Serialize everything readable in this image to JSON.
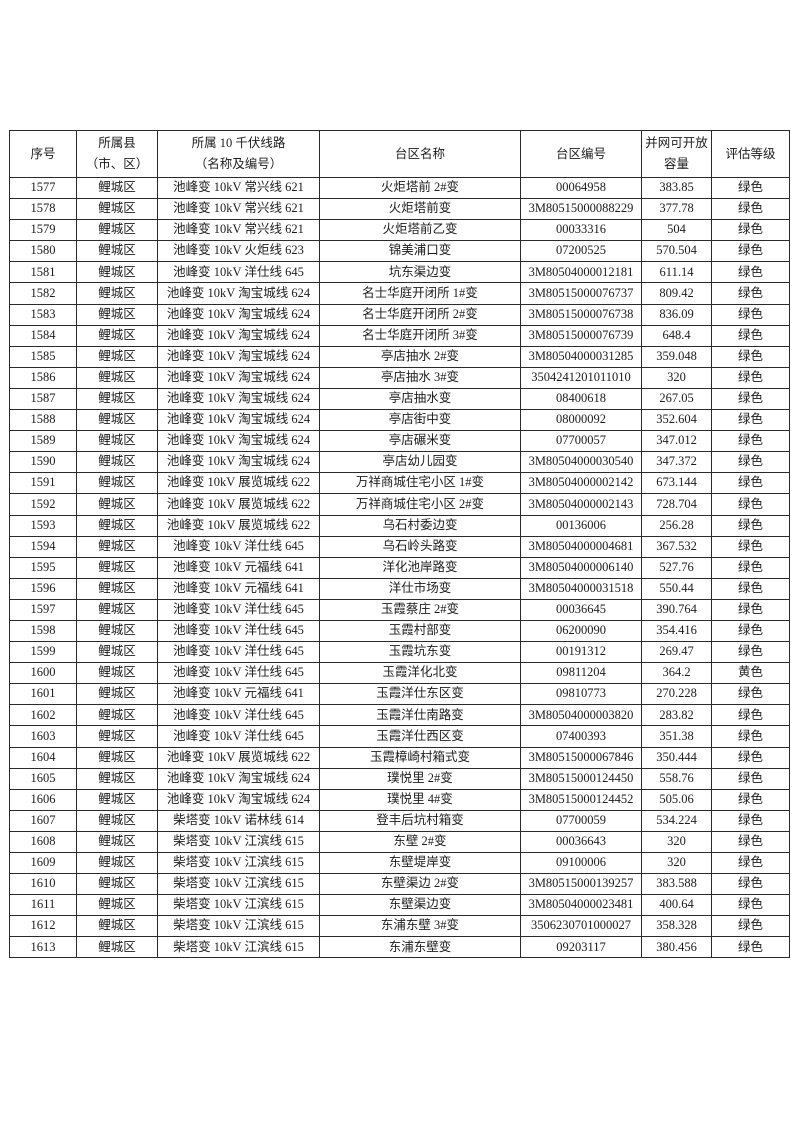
{
  "page": {
    "background": "#ffffff",
    "text_color": "#1c1c1c",
    "border_color": "#2a2a2a"
  },
  "table": {
    "headers": [
      "序号",
      "所属县\n（市、区）",
      "所属 10 千伏线路\n（名称及编号）",
      "台区名称",
      "台区编号",
      "并网可开放\n容量",
      "评估等级"
    ],
    "column_keys": [
      "no",
      "county",
      "line",
      "station_name",
      "station_code",
      "capacity",
      "grade"
    ],
    "rows": [
      {
        "no": "1577",
        "county": "鲤城区",
        "line": "池峰变 10kV 常兴线 621",
        "station_name": "火炬塔前 2#变",
        "station_code": "00064958",
        "capacity": "383.85",
        "grade": "绿色"
      },
      {
        "no": "1578",
        "county": "鲤城区",
        "line": "池峰变 10kV 常兴线 621",
        "station_name": "火炬塔前变",
        "station_code": "3M80515000088229",
        "capacity": "377.78",
        "grade": "绿色"
      },
      {
        "no": "1579",
        "county": "鲤城区",
        "line": "池峰变 10kV 常兴线 621",
        "station_name": "火炬塔前乙变",
        "station_code": "00033316",
        "capacity": "504",
        "grade": "绿色"
      },
      {
        "no": "1580",
        "county": "鲤城区",
        "line": "池峰变 10kV 火炬线 623",
        "station_name": "锦美浦口变",
        "station_code": "07200525",
        "capacity": "570.504",
        "grade": "绿色"
      },
      {
        "no": "1581",
        "county": "鲤城区",
        "line": "池峰变 10kV 洋仕线 645",
        "station_name": "坑东渠边变",
        "station_code": "3M80504000012181",
        "capacity": "611.14",
        "grade": "绿色"
      },
      {
        "no": "1582",
        "county": "鲤城区",
        "line": "池峰变 10kV 淘宝城线 624",
        "station_name": "名士华庭开闭所 1#变",
        "station_code": "3M80515000076737",
        "capacity": "809.42",
        "grade": "绿色"
      },
      {
        "no": "1583",
        "county": "鲤城区",
        "line": "池峰变 10kV 淘宝城线 624",
        "station_name": "名士华庭开闭所 2#变",
        "station_code": "3M80515000076738",
        "capacity": "836.09",
        "grade": "绿色"
      },
      {
        "no": "1584",
        "county": "鲤城区",
        "line": "池峰变 10kV 淘宝城线 624",
        "station_name": "名士华庭开闭所 3#变",
        "station_code": "3M80515000076739",
        "capacity": "648.4",
        "grade": "绿色"
      },
      {
        "no": "1585",
        "county": "鲤城区",
        "line": "池峰变 10kV 淘宝城线 624",
        "station_name": "亭店抽水 2#变",
        "station_code": "3M80504000031285",
        "capacity": "359.048",
        "grade": "绿色"
      },
      {
        "no": "1586",
        "county": "鲤城区",
        "line": "池峰变 10kV 淘宝城线 624",
        "station_name": "亭店抽水 3#变",
        "station_code": "3504241201011010",
        "capacity": "320",
        "grade": "绿色"
      },
      {
        "no": "1587",
        "county": "鲤城区",
        "line": "池峰变 10kV 淘宝城线 624",
        "station_name": "亭店抽水变",
        "station_code": "08400618",
        "capacity": "267.05",
        "grade": "绿色"
      },
      {
        "no": "1588",
        "county": "鲤城区",
        "line": "池峰变 10kV 淘宝城线 624",
        "station_name": "亭店街中变",
        "station_code": "08000092",
        "capacity": "352.604",
        "grade": "绿色"
      },
      {
        "no": "1589",
        "county": "鲤城区",
        "line": "池峰变 10kV 淘宝城线 624",
        "station_name": "亭店碾米变",
        "station_code": "07700057",
        "capacity": "347.012",
        "grade": "绿色"
      },
      {
        "no": "1590",
        "county": "鲤城区",
        "line": "池峰变 10kV 淘宝城线 624",
        "station_name": "亭店幼儿园变",
        "station_code": "3M80504000030540",
        "capacity": "347.372",
        "grade": "绿色"
      },
      {
        "no": "1591",
        "county": "鲤城区",
        "line": "池峰变 10kV 展览城线 622",
        "station_name": "万祥商城住宅小区 1#变",
        "station_code": "3M80504000002142",
        "capacity": "673.144",
        "grade": "绿色"
      },
      {
        "no": "1592",
        "county": "鲤城区",
        "line": "池峰变 10kV 展览城线 622",
        "station_name": "万祥商城住宅小区 2#变",
        "station_code": "3M80504000002143",
        "capacity": "728.704",
        "grade": "绿色"
      },
      {
        "no": "1593",
        "county": "鲤城区",
        "line": "池峰变 10kV 展览城线 622",
        "station_name": "乌石村委边变",
        "station_code": "00136006",
        "capacity": "256.28",
        "grade": "绿色"
      },
      {
        "no": "1594",
        "county": "鲤城区",
        "line": "池峰变 10kV 洋仕线 645",
        "station_name": "乌石岭头路变",
        "station_code": "3M80504000004681",
        "capacity": "367.532",
        "grade": "绿色"
      },
      {
        "no": "1595",
        "county": "鲤城区",
        "line": "池峰变 10kV 元福线 641",
        "station_name": "洋化池岸路变",
        "station_code": "3M80504000006140",
        "capacity": "527.76",
        "grade": "绿色"
      },
      {
        "no": "1596",
        "county": "鲤城区",
        "line": "池峰变 10kV 元福线 641",
        "station_name": "洋仕市场变",
        "station_code": "3M80504000031518",
        "capacity": "550.44",
        "grade": "绿色"
      },
      {
        "no": "1597",
        "county": "鲤城区",
        "line": "池峰变 10kV 洋仕线 645",
        "station_name": "玉霞蔡庄 2#变",
        "station_code": "00036645",
        "capacity": "390.764",
        "grade": "绿色"
      },
      {
        "no": "1598",
        "county": "鲤城区",
        "line": "池峰变 10kV 洋仕线 645",
        "station_name": "玉霞村部变",
        "station_code": "06200090",
        "capacity": "354.416",
        "grade": "绿色"
      },
      {
        "no": "1599",
        "county": "鲤城区",
        "line": "池峰变 10kV 洋仕线 645",
        "station_name": "玉霞坑东变",
        "station_code": "00191312",
        "capacity": "269.47",
        "grade": "绿色"
      },
      {
        "no": "1600",
        "county": "鲤城区",
        "line": "池峰变 10kV 洋仕线 645",
        "station_name": "玉霞洋化北变",
        "station_code": "09811204",
        "capacity": "364.2",
        "grade": "黄色"
      },
      {
        "no": "1601",
        "county": "鲤城区",
        "line": "池峰变 10kV 元福线 641",
        "station_name": "玉霞洋仕东区变",
        "station_code": "09810773",
        "capacity": "270.228",
        "grade": "绿色"
      },
      {
        "no": "1602",
        "county": "鲤城区",
        "line": "池峰变 10kV 洋仕线 645",
        "station_name": "玉霞洋仕南路变",
        "station_code": "3M80504000003820",
        "capacity": "283.82",
        "grade": "绿色"
      },
      {
        "no": "1603",
        "county": "鲤城区",
        "line": "池峰变 10kV 洋仕线 645",
        "station_name": "玉霞洋仕西区变",
        "station_code": "07400393",
        "capacity": "351.38",
        "grade": "绿色"
      },
      {
        "no": "1604",
        "county": "鲤城区",
        "line": "池峰变 10kV 展览城线 622",
        "station_name": "玉霞樟崎村箱式变",
        "station_code": "3M80515000067846",
        "capacity": "350.444",
        "grade": "绿色"
      },
      {
        "no": "1605",
        "county": "鲤城区",
        "line": "池峰变 10kV 淘宝城线 624",
        "station_name": "璞悦里 2#变",
        "station_code": "3M80515000124450",
        "capacity": "558.76",
        "grade": "绿色"
      },
      {
        "no": "1606",
        "county": "鲤城区",
        "line": "池峰变 10kV 淘宝城线 624",
        "station_name": "璞悦里 4#变",
        "station_code": "3M80515000124452",
        "capacity": "505.06",
        "grade": "绿色"
      },
      {
        "no": "1607",
        "county": "鲤城区",
        "line": "柴塔变 10kV 诺林线 614",
        "station_name": "登丰后坑村箱变",
        "station_code": "07700059",
        "capacity": "534.224",
        "grade": "绿色"
      },
      {
        "no": "1608",
        "county": "鲤城区",
        "line": "柴塔变 10kV 江滨线 615",
        "station_name": "东壁 2#变",
        "station_code": "00036643",
        "capacity": "320",
        "grade": "绿色"
      },
      {
        "no": "1609",
        "county": "鲤城区",
        "line": "柴塔变 10kV 江滨线 615",
        "station_name": "东壁堤岸变",
        "station_code": "09100006",
        "capacity": "320",
        "grade": "绿色"
      },
      {
        "no": "1610",
        "county": "鲤城区",
        "line": "柴塔变 10kV 江滨线 615",
        "station_name": "东壁渠边 2#变",
        "station_code": "3M80515000139257",
        "capacity": "383.588",
        "grade": "绿色"
      },
      {
        "no": "1611",
        "county": "鲤城区",
        "line": "柴塔变 10kV 江滨线 615",
        "station_name": "东壁渠边变",
        "station_code": "3M80504000023481",
        "capacity": "400.64",
        "grade": "绿色"
      },
      {
        "no": "1612",
        "county": "鲤城区",
        "line": "柴塔变 10kV 江滨线 615",
        "station_name": "东浦东壁 3#变",
        "station_code": "3506230701000027",
        "capacity": "358.328",
        "grade": "绿色"
      },
      {
        "no": "1613",
        "county": "鲤城区",
        "line": "柴塔变 10kV 江滨线 615",
        "station_name": "东浦东壁变",
        "station_code": "09203117",
        "capacity": "380.456",
        "grade": "绿色"
      }
    ]
  }
}
